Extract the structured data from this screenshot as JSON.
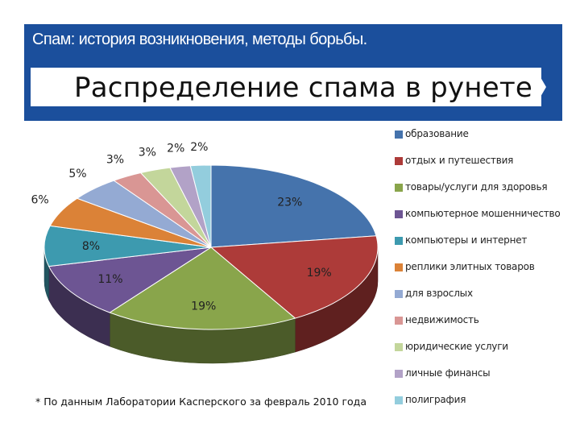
{
  "header": {
    "subtitle": "Спам: история возникновения, методы борьбы."
  },
  "chart_data": {
    "type": "pie",
    "title": "Распределение спама в рунете",
    "slices": [
      {
        "label": "образование",
        "value": 23,
        "value_label": "23%",
        "color": "#4573ac"
      },
      {
        "label": "отдых и путешествия",
        "value": 19,
        "value_label": "19%",
        "color": "#ad3b39"
      },
      {
        "label": "товары/услуги для здоровья",
        "value": 19,
        "value_label": "19%",
        "color": "#89a54b"
      },
      {
        "label": "компьютерное мошенничество",
        "value": 11,
        "value_label": "11%",
        "color": "#6d5593"
      },
      {
        "label": "компьютеры и интернет",
        "value": 8,
        "value_label": "8%",
        "color": "#3d9aaf"
      },
      {
        "label": "реплики элитных товаров",
        "value": 6,
        "value_label": "6%",
        "color": "#db8237"
      },
      {
        "label": "для взрослых",
        "value": 5,
        "value_label": "5%",
        "color": "#94aad3"
      },
      {
        "label": "недвижимость",
        "value": 3,
        "value_label": "3%",
        "color": "#d99694"
      },
      {
        "label": "юридические услуги",
        "value": 3,
        "value_label": "3%",
        "color": "#c3d69b"
      },
      {
        "label": "личные финансы",
        "value": 2,
        "value_label": "2%",
        "color": "#b2a2c7"
      },
      {
        "label": "полиграфия",
        "value": 2,
        "value_label": "2%",
        "color": "#93cddd"
      }
    ],
    "legend_position": "right"
  },
  "footnote": "* По данным Лаборатории Касперского за февраль 2010 года"
}
